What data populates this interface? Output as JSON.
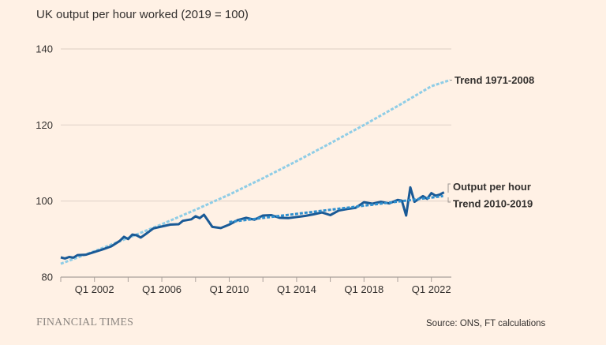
{
  "chart_data": {
    "type": "line",
    "title": "UK output per hour worked (2019 = 100)",
    "xlabel": "",
    "ylabel": "",
    "xlim": [
      2000.0,
      2024.0
    ],
    "ylim": [
      80,
      140
    ],
    "yticks": [
      80,
      100,
      120,
      140
    ],
    "ytick_labels": [
      "80",
      "100",
      "120",
      "140"
    ],
    "xticks": [
      2000,
      2002,
      2004,
      2006,
      2008,
      2010,
      2012,
      2014,
      2016,
      2018,
      2020,
      2022
    ],
    "xtick_labels": [
      {
        "x": 2002,
        "label": "Q1 2002"
      },
      {
        "x": 2006,
        "label": "Q1 2006"
      },
      {
        "x": 2010,
        "label": "Q1 2010"
      },
      {
        "x": 2014,
        "label": "Q1 2014"
      },
      {
        "x": 2018,
        "label": "Q1 2018"
      },
      {
        "x": 2022,
        "label": "Q1 2022"
      }
    ],
    "grid": "horizontal",
    "series": [
      {
        "name": "Trend 1971-2008",
        "style": "dashed",
        "color": "#8fcde6",
        "x": [
          2000.0,
          2002.0,
          2004.0,
          2006.0,
          2008.0,
          2010.0,
          2012.0,
          2014.0,
          2016.0,
          2018.0,
          2020.0,
          2022.0,
          2023.1
        ],
        "y": [
          83.5,
          86.8,
          90.3,
          93.9,
          97.7,
          101.7,
          106.0,
          110.5,
          115.2,
          120.0,
          125.0,
          130.2,
          131.8
        ]
      },
      {
        "name": "Trend 2010-2019",
        "style": "dashed",
        "color": "#2f8fce",
        "x": [
          2010.0,
          2022.7
        ],
        "y": [
          94.5,
          101.3
        ]
      },
      {
        "name": "Output per hour",
        "style": "solid",
        "color": "#1a5a96",
        "x": [
          2000.0,
          2000.25,
          2000.5,
          2000.75,
          2001.0,
          2001.5,
          2002.0,
          2002.5,
          2003.0,
          2003.5,
          2003.75,
          2004.0,
          2004.25,
          2004.5,
          2004.75,
          2005.0,
          2005.5,
          2006.0,
          2006.5,
          2007.0,
          2007.25,
          2007.75,
          2008.0,
          2008.25,
          2008.5,
          2009.0,
          2009.5,
          2010.0,
          2010.5,
          2011.0,
          2011.5,
          2012.0,
          2012.5,
          2013.0,
          2013.5,
          2014.0,
          2014.5,
          2015.0,
          2015.5,
          2016.0,
          2016.5,
          2017.0,
          2017.5,
          2018.0,
          2018.5,
          2019.0,
          2019.5,
          2020.0,
          2020.25,
          2020.5,
          2020.75,
          2021.0,
          2021.5,
          2021.75,
          2022.0,
          2022.25,
          2022.5,
          2022.75
        ],
        "y": [
          85.2,
          84.9,
          85.3,
          85.1,
          85.8,
          85.9,
          86.6,
          87.3,
          88.1,
          89.5,
          90.6,
          90.0,
          91.2,
          91.0,
          90.4,
          91.2,
          92.8,
          93.3,
          93.8,
          93.9,
          94.8,
          95.2,
          96.0,
          95.5,
          96.4,
          93.2,
          92.9,
          93.8,
          95.0,
          95.6,
          95.1,
          96.2,
          96.3,
          95.6,
          95.5,
          95.8,
          96.1,
          96.5,
          97.0,
          96.3,
          97.5,
          97.9,
          98.2,
          99.7,
          99.3,
          99.8,
          99.4,
          100.3,
          100.1,
          96.2,
          103.6,
          99.8,
          101.3,
          100.6,
          102.1,
          101.4,
          101.7,
          102.3
        ]
      }
    ],
    "annotations": [
      {
        "text": "Trend 1971-2008",
        "series": "Trend 1971-2008"
      },
      {
        "text": "Output per hour",
        "series": "Output per hour"
      },
      {
        "text": "Trend 2010-2019",
        "series": "Trend 2010-2019"
      }
    ],
    "legend": "direct-labels-right"
  },
  "footer": {
    "brand": "FINANCIAL TIMES",
    "source": "Source: ONS, FT calculations"
  },
  "colors": {
    "background": "#fff1e5",
    "grid": "#e3d5ca",
    "axis": "#a9a09a",
    "output": "#1a5a96",
    "trend_2010_2019": "#2f8fce",
    "trend_1971_2008": "#8fcde6"
  }
}
